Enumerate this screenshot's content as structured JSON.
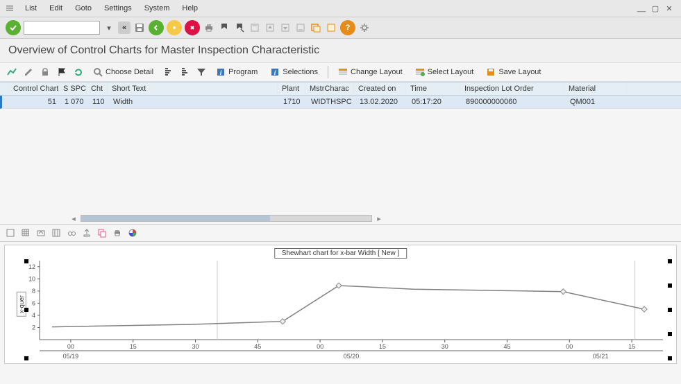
{
  "menubar": {
    "items": [
      "List",
      "Edit",
      "Goto",
      "Settings",
      "System",
      "Help"
    ]
  },
  "page_title": "Overview of Control Charts for Master Inspection Characteristic",
  "toolbar2": {
    "choose_detail": "Choose Detail",
    "program": "Program",
    "selections": "Selections",
    "change_layout": "Change Layout",
    "select_layout": "Select Layout",
    "save_layout": "Save Layout"
  },
  "grid": {
    "headers": {
      "s": "S",
      "control_chart": "Control Chart",
      "sspc": "S SPC",
      "cht": "Cht",
      "short_text": "Short Text",
      "plant": "Plant",
      "mstr": "MstrCharac",
      "created_on": "Created on",
      "time": "Time",
      "ilo": "Inspection Lot Order",
      "material": "Material"
    },
    "rows": [
      {
        "control_chart": "51",
        "sspc": "1 070",
        "cht": "110",
        "short_text": "Width",
        "plant": "1710",
        "mstr": "WIDTHSPC",
        "created_on": "13.02.2020",
        "time": "05:17:20",
        "ilo": "890000000060",
        "material": "QM001"
      }
    ]
  },
  "chart": {
    "title": "Shewhart chart for x-bar Width [ New ]",
    "y_label": "x-quer",
    "y_ticks": [
      2,
      4,
      6,
      8,
      10,
      12
    ],
    "y_min": 0,
    "y_max": 13,
    "x_minor": [
      "00",
      "15",
      "30",
      "45",
      "00",
      "15",
      "30",
      "45",
      "00",
      "15"
    ],
    "x_major": [
      "05/19",
      "05/20",
      "05/21"
    ],
    "x_major_positions": [
      0.05,
      0.5,
      0.9
    ],
    "vert_grid_positions": [
      0.285,
      0.955
    ],
    "line_color": "#808080",
    "axis_color": "#666666",
    "grid_color": "#c8c8c8",
    "tick_color": "#555555",
    "marker_color": "#eeeeee",
    "marker_stroke": "#888888",
    "background": "#ffffff",
    "points": [
      {
        "x": 0.02,
        "y": 2.1,
        "marker": false
      },
      {
        "x": 0.24,
        "y": 2.5,
        "marker": false
      },
      {
        "x": 0.39,
        "y": 3.0,
        "marker": true
      },
      {
        "x": 0.48,
        "y": 8.9,
        "marker": true
      },
      {
        "x": 0.6,
        "y": 8.3,
        "marker": false
      },
      {
        "x": 0.84,
        "y": 7.9,
        "marker": true
      },
      {
        "x": 0.97,
        "y": 5.0,
        "marker": true
      }
    ]
  }
}
